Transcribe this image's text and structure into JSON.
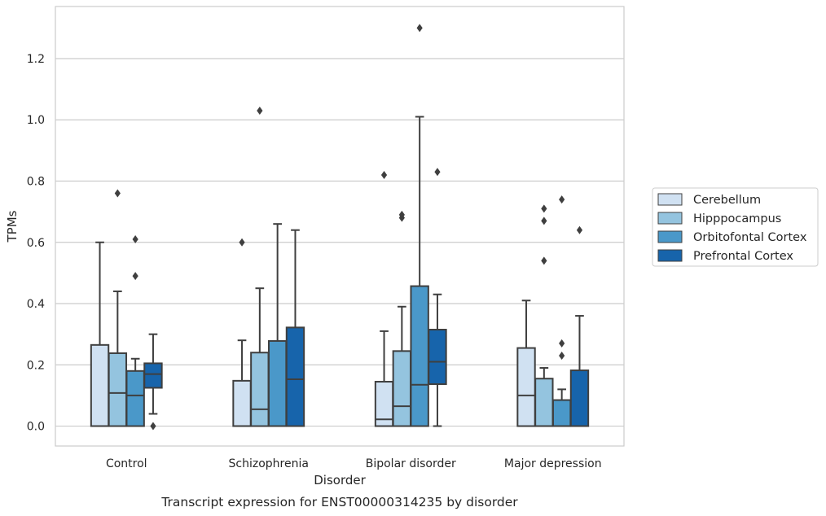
{
  "chart_data": {
    "type": "box",
    "caption": "Transcript expression for ENST00000314235 by disorder",
    "xlabel": "Disorder",
    "ylabel": "TPMs",
    "ylim": [
      -0.065,
      1.37
    ],
    "yticks": [
      "0.0",
      "0.2",
      "0.4",
      "0.6",
      "0.8",
      "1.0",
      "1.2"
    ],
    "ytick_values": [
      0.0,
      0.2,
      0.4,
      0.6,
      0.8,
      1.0,
      1.2
    ],
    "grid": true,
    "legend_position": "right",
    "categories": [
      "Control",
      "Schizophrenia",
      "Bipolar disorder",
      "Major depression"
    ],
    "series": [
      {
        "name": "Cerebellum",
        "color": "#d0e1f2",
        "boxes": [
          {
            "wlo": 0.0,
            "q1": 0.0,
            "med": 0.0,
            "q3": 0.265,
            "whi": 0.6,
            "outliers": []
          },
          {
            "wlo": 0.0,
            "q1": 0.0,
            "med": 0.0,
            "q3": 0.148,
            "whi": 0.28,
            "outliers": [
              0.6
            ]
          },
          {
            "wlo": 0.0,
            "q1": 0.0,
            "med": 0.022,
            "q3": 0.145,
            "whi": 0.31,
            "outliers": [
              0.82
            ]
          },
          {
            "wlo": 0.0,
            "q1": 0.0,
            "med": 0.1,
            "q3": 0.255,
            "whi": 0.41,
            "outliers": []
          }
        ]
      },
      {
        "name": "Hipppocampus",
        "color": "#94c4df",
        "boxes": [
          {
            "wlo": 0.0,
            "q1": 0.0,
            "med": 0.108,
            "q3": 0.238,
            "whi": 0.44,
            "outliers": [
              0.76
            ]
          },
          {
            "wlo": 0.0,
            "q1": 0.0,
            "med": 0.055,
            "q3": 0.24,
            "whi": 0.45,
            "outliers": [
              1.03
            ]
          },
          {
            "wlo": 0.0,
            "q1": 0.0,
            "med": 0.065,
            "q3": 0.245,
            "whi": 0.39,
            "outliers": [
              0.68,
              0.69
            ]
          },
          {
            "wlo": 0.0,
            "q1": 0.0,
            "med": 0.0,
            "q3": 0.155,
            "whi": 0.19,
            "outliers": [
              0.54,
              0.67,
              0.71
            ]
          }
        ]
      },
      {
        "name": "Orbitofontal Cortex",
        "color": "#4a98c9",
        "boxes": [
          {
            "wlo": 0.0,
            "q1": 0.0,
            "med": 0.1,
            "q3": 0.18,
            "whi": 0.22,
            "outliers": [
              0.49,
              0.61
            ]
          },
          {
            "wlo": 0.0,
            "q1": 0.0,
            "med": 0.0,
            "q3": 0.278,
            "whi": 0.66,
            "outliers": []
          },
          {
            "wlo": 0.0,
            "q1": 0.0,
            "med": 0.135,
            "q3": 0.457,
            "whi": 1.01,
            "outliers": [
              1.3
            ]
          },
          {
            "wlo": 0.0,
            "q1": 0.0,
            "med": 0.0,
            "q3": 0.085,
            "whi": 0.12,
            "outliers": [
              0.23,
              0.27,
              0.74
            ]
          }
        ]
      },
      {
        "name": "Prefrontal Cortex",
        "color": "#1764ab",
        "boxes": [
          {
            "wlo": 0.04,
            "q1": 0.125,
            "med": 0.17,
            "q3": 0.205,
            "whi": 0.3,
            "outliers": [
              0.0
            ]
          },
          {
            "wlo": 0.0,
            "q1": 0.0,
            "med": 0.153,
            "q3": 0.322,
            "whi": 0.64,
            "outliers": []
          },
          {
            "wlo": 0.0,
            "q1": 0.137,
            "med": 0.21,
            "q3": 0.315,
            "whi": 0.43,
            "outliers": [
              0.83
            ]
          },
          {
            "wlo": 0.0,
            "q1": 0.0,
            "med": 0.0,
            "q3": 0.182,
            "whi": 0.36,
            "outliers": [
              0.64
            ]
          }
        ]
      }
    ]
  }
}
